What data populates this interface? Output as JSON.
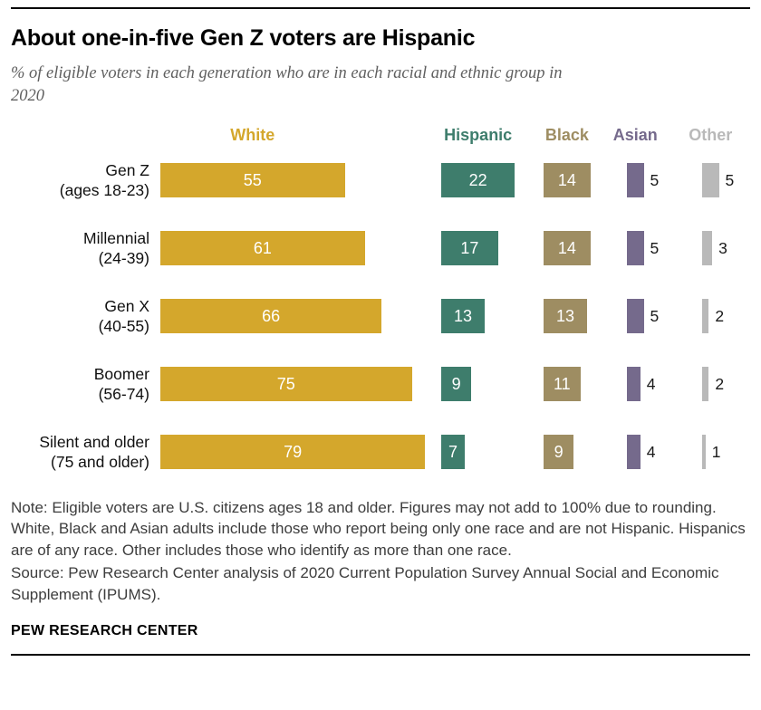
{
  "title": "About one-in-five Gen Z voters are Hispanic",
  "subtitle": "% of eligible voters in each generation who are in each racial and ethnic group in 2020",
  "note": "Note: Eligible voters are U.S. citizens ages 18 and older. Figures may not add to 100% due to rounding. White, Black and Asian adults include those who report being only one race and are not Hispanic. Hispanics are of any race. Other includes those who identify as more than one race.",
  "source": "Source: Pew Research Center analysis of 2020 Current Population Survey Annual Social and Economic Supplement (IPUMS).",
  "footer": "PEW RESEARCH CENTER",
  "chart_data": {
    "type": "bar",
    "orientation": "horizontal-grouped",
    "unit": "percent",
    "xlim": [
      0,
      100
    ],
    "categories": [
      {
        "name": "Gen Z",
        "detail": "(ages 18-23)"
      },
      {
        "name": "Millennial",
        "detail": "(24-39)"
      },
      {
        "name": "Gen X",
        "detail": "(40-55)"
      },
      {
        "name": "Boomer",
        "detail": "(56-74)"
      },
      {
        "name": "Silent and older",
        "detail": "(75 and older)"
      }
    ],
    "series": [
      {
        "name": "White",
        "color": "#d4a72c",
        "label_position": "inside",
        "values": [
          55,
          61,
          66,
          75,
          79
        ]
      },
      {
        "name": "Hispanic",
        "color": "#3e7d6c",
        "label_position": "inside",
        "values": [
          22,
          17,
          13,
          9,
          7
        ]
      },
      {
        "name": "Black",
        "color": "#9e8d62",
        "label_position": "inside",
        "values": [
          14,
          14,
          13,
          11,
          9
        ]
      },
      {
        "name": "Asian",
        "color": "#756a8c",
        "label_position": "outside",
        "values": [
          5,
          5,
          5,
          4,
          4
        ]
      },
      {
        "name": "Other",
        "color": "#b9b9b9",
        "label_position": "outside",
        "values": [
          5,
          3,
          2,
          2,
          1
        ]
      }
    ]
  }
}
